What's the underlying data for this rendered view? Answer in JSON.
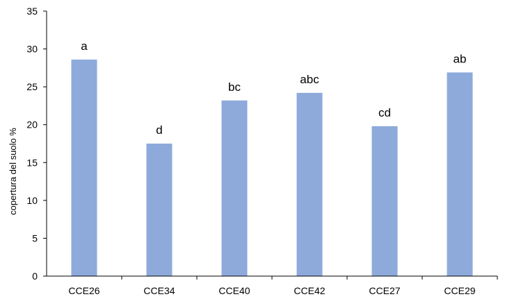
{
  "chart_data": {
    "type": "bar",
    "title": "",
    "xlabel": "",
    "ylabel": "copertura del suolo %",
    "ylim": [
      0,
      35
    ],
    "yticks": [
      0,
      5,
      10,
      15,
      20,
      25,
      30,
      35
    ],
    "grid": false,
    "legend": "none",
    "bar_color": "#8eaadb",
    "categories": [
      "CCE26",
      "CCE34",
      "CCE40",
      "CCE42",
      "CCE27",
      "CCE29"
    ],
    "values": [
      28.6,
      17.5,
      23.2,
      24.2,
      19.8,
      26.9
    ],
    "data_labels": [
      "a",
      "d",
      "bc",
      "abc",
      "cd",
      "ab"
    ]
  }
}
